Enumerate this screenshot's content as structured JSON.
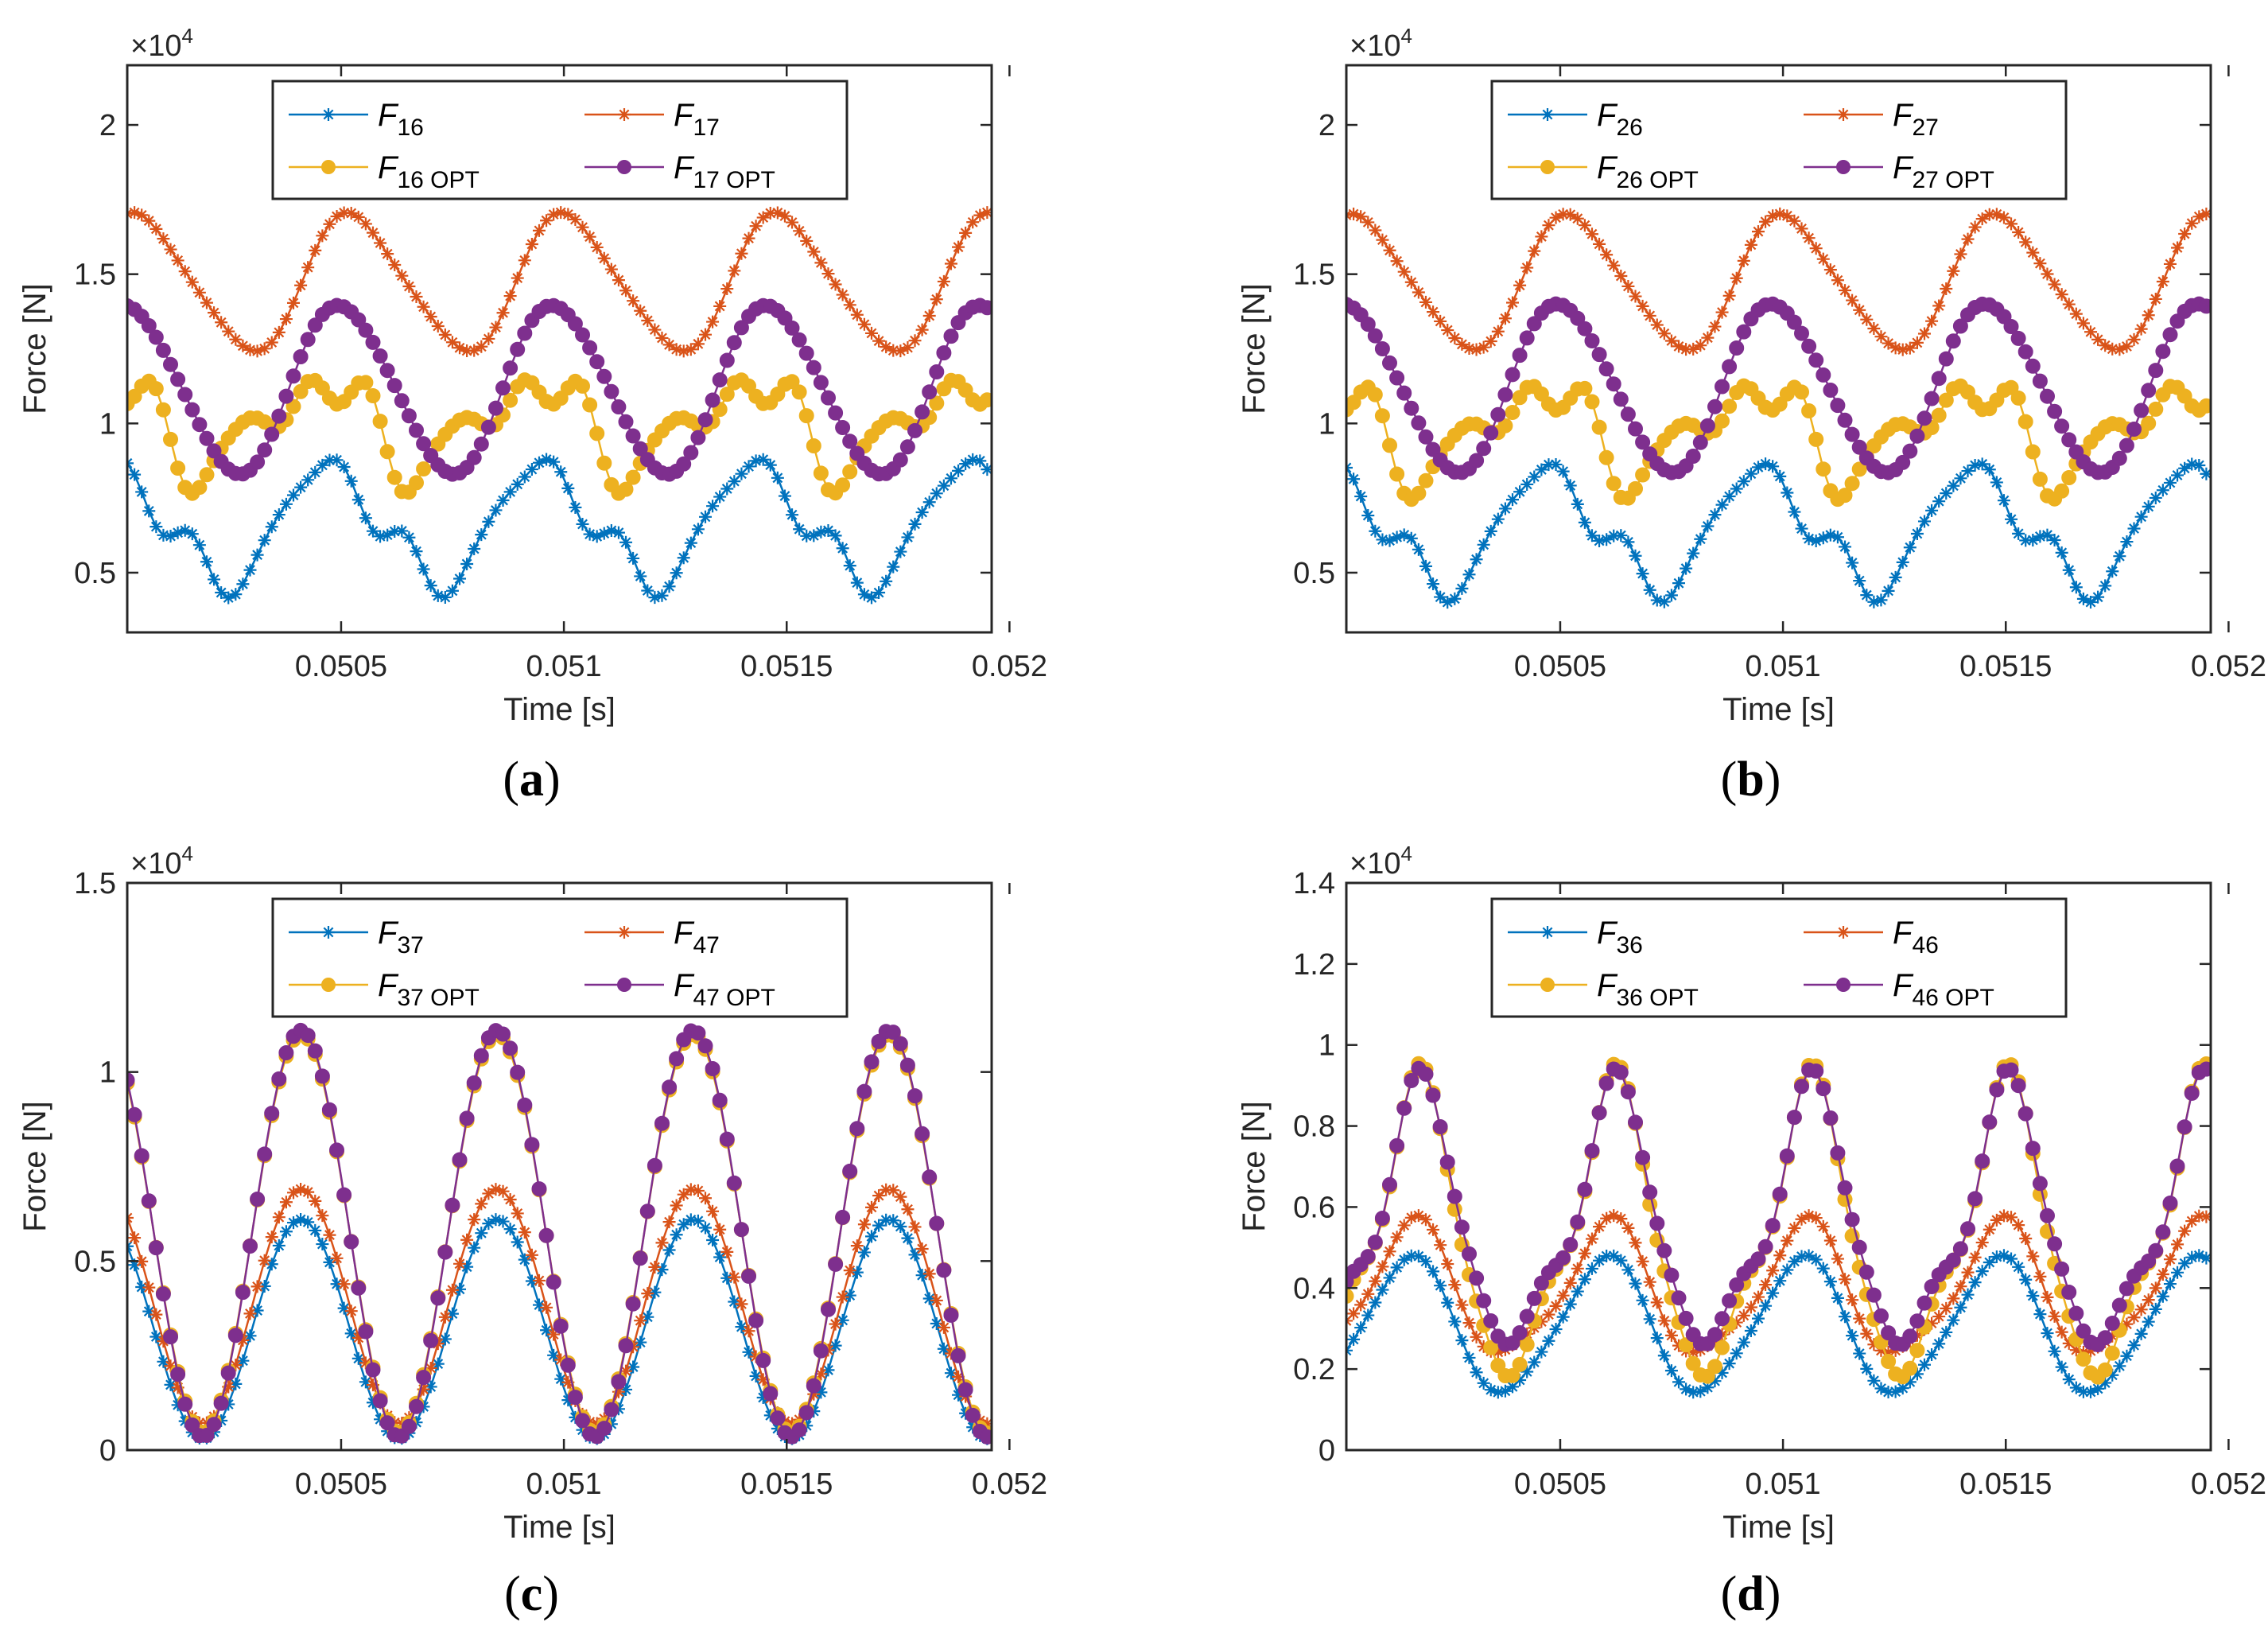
{
  "colors": {
    "c1": "#0072BD",
    "c2": "#D95319",
    "c3": "#EDB120",
    "c4": "#7E2F8E"
  },
  "chart_data": [
    {
      "type": "line",
      "panel": "(a)",
      "caption": {
        "open": "(",
        "letter": "a",
        "close": ")"
      },
      "xlabel": "Time [s]",
      "ylabel": "Force [N]",
      "yexponent": {
        "base": "×10",
        "power": "4"
      },
      "xlim": [
        0.05002,
        0.05196
      ],
      "ylim": [
        0.3,
        2.2
      ],
      "xticks": [
        0.0505,
        0.051,
        0.0515,
        0.052
      ],
      "xticklabels": [
        "0.0505",
        "0.051",
        "0.0515",
        "0.052"
      ],
      "yticks": [
        0.5,
        1,
        1.5,
        2
      ],
      "yticklabels": [
        "0.5",
        "1",
        "1.5",
        "2"
      ],
      "legend_position": "top-center",
      "x": {
        "start": 0.05002,
        "end": 0.05195,
        "count": 120,
        "period": 0.00048
      },
      "series": [
        {
          "name": "F16",
          "label": {
            "main": "F",
            "sub": "16"
          },
          "color": "#0072BD",
          "marker": "star",
          "mean": 0.66,
          "harmonics": [
            [
              1,
              0.19,
              0.97
            ],
            [
              2,
              0.035,
              0.4
            ],
            [
              3,
              0.045,
              3.6
            ],
            [
              4,
              0.012,
              0.0
            ]
          ]
        },
        {
          "name": "F17",
          "label": {
            "main": "F",
            "sub": "17"
          },
          "color": "#D95319",
          "marker": "star",
          "mean": 1.47,
          "harmonics": [
            [
              1,
              0.225,
              1.7
            ],
            [
              2,
              0.03,
              2.0
            ]
          ]
        },
        {
          "name": "F16OPT",
          "label": {
            "main": "F",
            "sub": "16 OPT"
          },
          "color": "#EDB120",
          "marker": "circle",
          "mean": 1.0,
          "harmonics": [
            [
              1,
              0.13,
              0.6
            ],
            [
              2,
              0.065,
              3.3
            ],
            [
              3,
              0.055,
              0.5
            ],
            [
              4,
              0.03,
              2.0
            ]
          ]
        },
        {
          "name": "F17OPT",
          "label": {
            "main": "F",
            "sub": "17 OPT"
          },
          "color": "#7E2F8E",
          "marker": "circle",
          "mean": 1.115,
          "harmonics": [
            [
              1,
              0.28,
              1.35
            ],
            [
              2,
              0.02,
              1.0
            ]
          ]
        }
      ]
    },
    {
      "type": "line",
      "panel": "(b)",
      "caption": {
        "open": "(",
        "letter": "b",
        "close": ")"
      },
      "xlabel": "Time [s]",
      "ylabel": "Force [N]",
      "yexponent": {
        "base": "×10",
        "power": "4"
      },
      "xlim": [
        0.05002,
        0.05196
      ],
      "ylim": [
        0.3,
        2.2
      ],
      "xticks": [
        0.0505,
        0.051,
        0.0515,
        0.052
      ],
      "xticklabels": [
        "0.0505",
        "0.051",
        "0.0515",
        "0.052"
      ],
      "yticks": [
        0.5,
        1,
        1.5,
        2
      ],
      "yticklabels": [
        "0.5",
        "1",
        "1.5",
        "2"
      ],
      "legend_position": "top-center",
      "x": {
        "start": 0.05002,
        "end": 0.05195,
        "count": 120,
        "period": 0.00048
      },
      "series": [
        {
          "name": "F26",
          "label": {
            "main": "F",
            "sub": "26"
          },
          "color": "#0072BD",
          "marker": "star",
          "mean": 0.645,
          "harmonics": [
            [
              1,
              0.19,
              0.97
            ],
            [
              2,
              0.035,
              0.4
            ],
            [
              3,
              0.045,
              3.6
            ],
            [
              4,
              0.012,
              0.0
            ]
          ]
        },
        {
          "name": "F27",
          "label": {
            "main": "F",
            "sub": "27"
          },
          "color": "#D95319",
          "marker": "star",
          "mean": 1.47,
          "harmonics": [
            [
              1,
              0.22,
              1.7
            ],
            [
              2,
              0.03,
              2.0
            ]
          ]
        },
        {
          "name": "F26OPT",
          "label": {
            "main": "F",
            "sub": "26 OPT"
          },
          "color": "#EDB120",
          "marker": "circle",
          "mean": 0.98,
          "harmonics": [
            [
              1,
              0.13,
              0.6
            ],
            [
              2,
              0.065,
              3.3
            ],
            [
              3,
              0.055,
              0.5
            ],
            [
              4,
              0.03,
              2.0
            ]
          ]
        },
        {
          "name": "F27OPT",
          "label": {
            "main": "F",
            "sub": "27 OPT"
          },
          "color": "#7E2F8E",
          "marker": "circle",
          "mean": 1.12,
          "harmonics": [
            [
              1,
              0.28,
              1.35
            ],
            [
              2,
              0.02,
              1.0
            ]
          ]
        }
      ]
    },
    {
      "type": "line",
      "panel": "(c)",
      "caption": {
        "open": "(",
        "letter": "c",
        "close": ")"
      },
      "xlabel": "Time [s]",
      "ylabel": "Force [N]",
      "yexponent": {
        "base": "×10",
        "power": "4"
      },
      "xlim": [
        0.05002,
        0.05196
      ],
      "ylim": [
        0,
        1.5
      ],
      "xticks": [
        0.0505,
        0.051,
        0.0515,
        0.052
      ],
      "xticklabels": [
        "0.0505",
        "0.051",
        "0.0515",
        "0.052"
      ],
      "yticks": [
        0,
        0.5,
        1,
        1.5
      ],
      "yticklabels": [
        "0",
        "0.5",
        "1",
        "1.5"
      ],
      "legend_position": "top-center",
      "x": {
        "start": 0.05002,
        "end": 0.05195,
        "count": 120,
        "period": 0.00044
      },
      "series": [
        {
          "name": "F37",
          "label": {
            "main": "F",
            "sub": "37"
          },
          "color": "#0072BD",
          "marker": "star",
          "peak_time": 0.05041,
          "min": 0.03,
          "max": 0.61
        },
        {
          "name": "F47",
          "label": {
            "main": "F",
            "sub": "47"
          },
          "color": "#D95319",
          "marker": "star",
          "peak_time": 0.05041,
          "min": 0.07,
          "max": 0.69
        },
        {
          "name": "F37OPT",
          "label": {
            "main": "F",
            "sub": "37 OPT"
          },
          "color": "#EDB120",
          "marker": "circle",
          "peak_time": 0.05041,
          "min": 0.045,
          "max": 1.1
        },
        {
          "name": "F47OPT",
          "label": {
            "main": "F",
            "sub": "47 OPT"
          },
          "color": "#7E2F8E",
          "marker": "circle",
          "peak_time": 0.05041,
          "min": 0.035,
          "max": 1.11
        }
      ]
    },
    {
      "type": "line",
      "panel": "(d)",
      "caption": {
        "open": "(",
        "letter": "d",
        "close": ")"
      },
      "xlabel": "Time [s]",
      "ylabel": "Force [N]",
      "yexponent": {
        "base": "×10",
        "power": "4"
      },
      "xlim": [
        0.05002,
        0.05196
      ],
      "ylim": [
        0,
        1.4
      ],
      "xticks": [
        0.0505,
        0.051,
        0.0515,
        0.052
      ],
      "xticklabels": [
        "0.0505",
        "0.051",
        "0.0515",
        "0.052"
      ],
      "yticks": [
        0,
        0.2,
        0.4,
        0.6,
        0.8,
        1,
        1.2,
        1.4
      ],
      "yticklabels": [
        "0",
        "0.2",
        "0.4",
        "0.6",
        "0.8",
        "1",
        "1.2",
        "1.4"
      ],
      "legend_position": "top-center",
      "x": {
        "start": 0.05002,
        "end": 0.05195,
        "count": 120,
        "period": 0.00044
      },
      "series": [
        {
          "name": "F36",
          "label": {
            "main": "F",
            "sub": "36"
          },
          "color": "#0072BD",
          "marker": "star",
          "mean": 0.305,
          "harmonics": [
            [
              1,
              0.165,
              0.0
            ],
            [
              2,
              0.02,
              1.2
            ]
          ]
        },
        {
          "name": "F46",
          "label": {
            "main": "F",
            "sub": "46"
          },
          "color": "#D95319",
          "marker": "star",
          "mean": 0.39,
          "harmonics": [
            [
              1,
              0.16,
              0.1
            ],
            [
              2,
              0.035,
              1.0
            ]
          ]
        },
        {
          "name": "F36OPT",
          "label": {
            "main": "F",
            "sub": "36 OPT"
          },
          "color": "#EDB120",
          "marker": "circle",
          "mean": 0.52,
          "harmonics": [
            [
              1,
              0.34,
              0.25
            ],
            [
              2,
              0.07,
              1.3
            ],
            [
              3,
              0.04,
              0.8
            ]
          ]
        },
        {
          "name": "F46OPT",
          "label": {
            "main": "F",
            "sub": "46 OPT"
          },
          "color": "#7E2F8E",
          "marker": "circle",
          "mean": 0.55,
          "harmonics": [
            [
              1,
              0.3,
              0.3
            ],
            [
              2,
              0.07,
              1.2
            ],
            [
              3,
              0.035,
              0.6
            ]
          ]
        }
      ]
    }
  ]
}
